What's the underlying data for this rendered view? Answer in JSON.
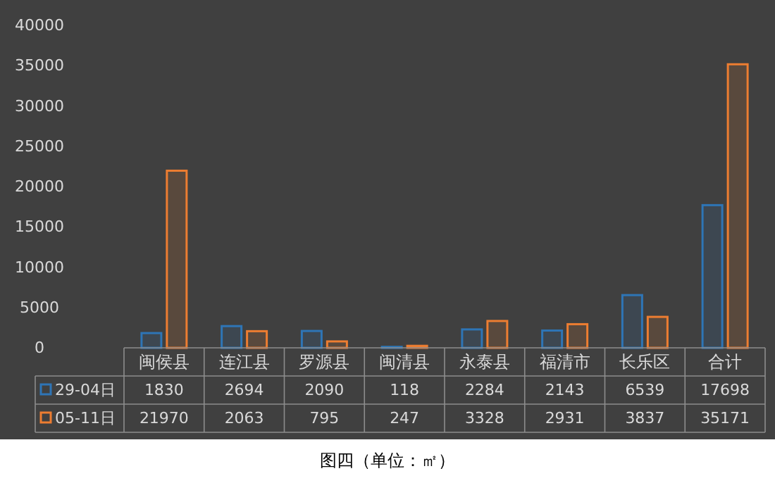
{
  "chart_data": {
    "type": "bar",
    "categories": [
      "闽侯县",
      "连江县",
      "罗源县",
      "闽清县",
      "永泰县",
      "福清市",
      "长乐区",
      "合计"
    ],
    "series": [
      {
        "name": "29-04日",
        "color": "#2e75b6",
        "values": [
          1830,
          2694,
          2090,
          118,
          2284,
          2143,
          6539,
          17698
        ]
      },
      {
        "name": "05-11日",
        "color": "#ed7d31",
        "values": [
          21970,
          2063,
          795,
          247,
          3328,
          2931,
          3837,
          35171
        ]
      }
    ],
    "ylim": [
      0,
      40000
    ],
    "yticks": [
      0,
      5000,
      10000,
      15000,
      20000,
      25000,
      30000,
      35000,
      40000
    ],
    "data_labels": true,
    "legend": "bottom left",
    "annotations": [
      "图四（单位：㎡）"
    ]
  }
}
